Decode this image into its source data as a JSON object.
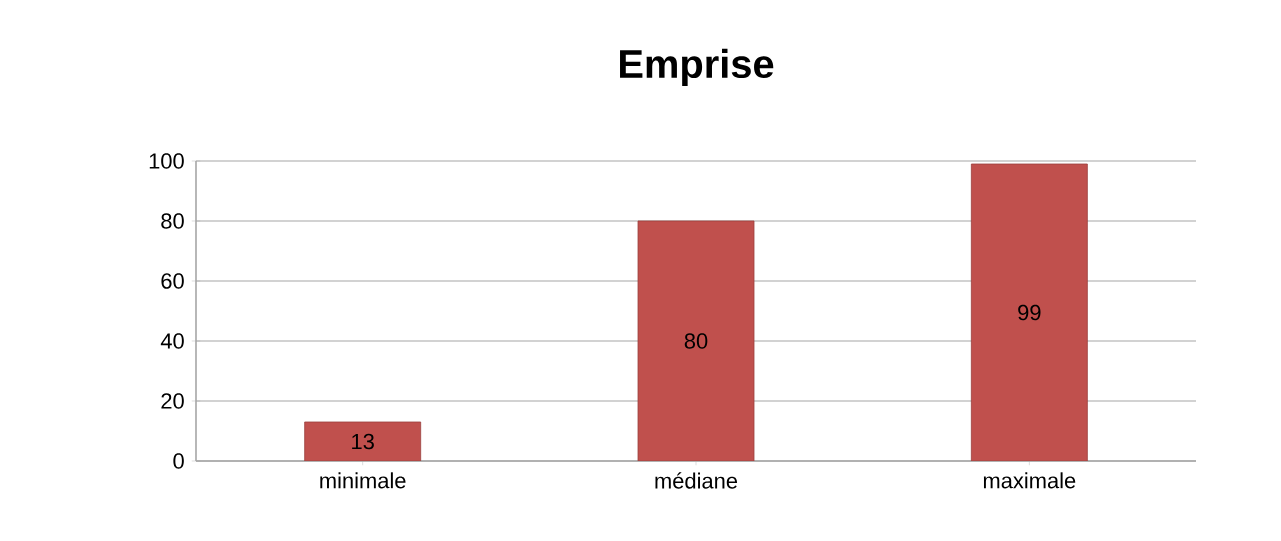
{
  "chart_data": {
    "type": "bar",
    "title": "Emprise",
    "categories": [
      "minimale",
      "médiane",
      "maximale"
    ],
    "values": [
      13,
      80,
      99
    ],
    "color": "#c0504d",
    "ylim": [
      0,
      100
    ],
    "yticks": [
      0,
      20,
      40,
      60,
      80,
      100
    ],
    "grid": "y",
    "data_labels": true
  }
}
